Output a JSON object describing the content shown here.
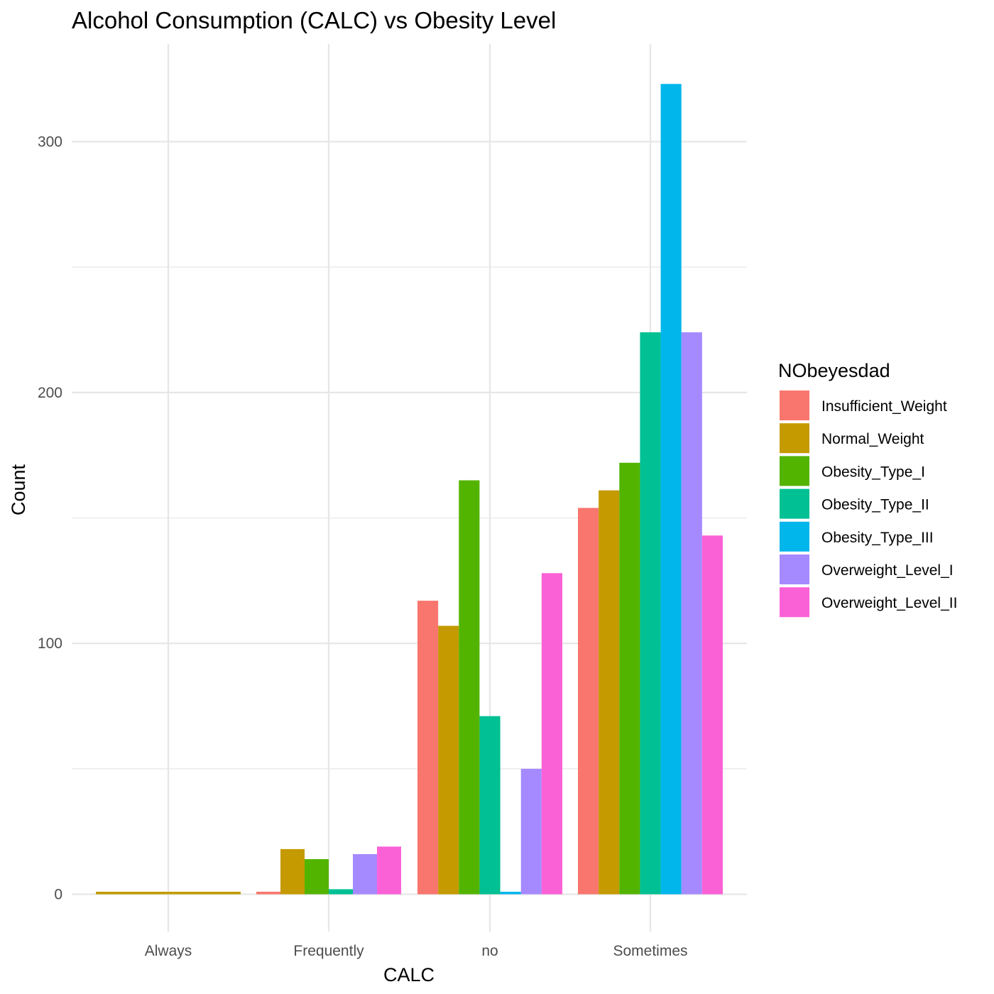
{
  "chart_data": {
    "type": "bar",
    "title": "Alcohol Consumption (CALC) vs Obesity Level",
    "xlabel": "CALC",
    "ylabel": "Count",
    "categories": [
      "Always",
      "Frequently",
      "no",
      "Sometimes"
    ],
    "ylim": [
      -14,
      339
    ],
    "yticks": [
      0,
      100,
      200,
      300
    ],
    "yminor": [
      50,
      150,
      250
    ],
    "grid": true,
    "legend_title": "NObeyesdad",
    "legend_position": "right",
    "series": [
      {
        "name": "Insufficient_Weight",
        "color": "#F8766D",
        "values": [
          0,
          1,
          117,
          154
        ]
      },
      {
        "name": "Normal_Weight",
        "color": "#C49A00",
        "values": [
          1,
          18,
          107,
          161
        ]
      },
      {
        "name": "Obesity_Type_I",
        "color": "#53B400",
        "values": [
          0,
          14,
          165,
          172
        ]
      },
      {
        "name": "Obesity_Type_II",
        "color": "#00C094",
        "values": [
          0,
          2,
          71,
          224
        ]
      },
      {
        "name": "Obesity_Type_III",
        "color": "#00B6EB",
        "values": [
          0,
          0,
          1,
          323
        ]
      },
      {
        "name": "Overweight_Level_I",
        "color": "#A58AFF",
        "values": [
          0,
          16,
          50,
          224
        ]
      },
      {
        "name": "Overweight_Level_II",
        "color": "#FB61D7",
        "values": [
          0,
          19,
          128,
          143
        ]
      }
    ]
  }
}
